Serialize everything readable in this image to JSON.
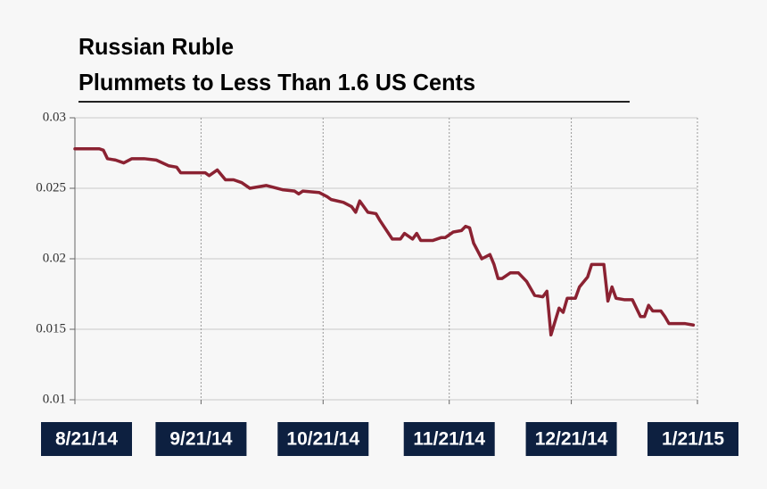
{
  "chart_data": {
    "type": "line",
    "title": [
      "Russian Ruble",
      "Plummets to Less Than 1.6 US Cents"
    ],
    "color": "#8b2232",
    "x": [
      0,
      6,
      7,
      8,
      10,
      12,
      14,
      17,
      20,
      23,
      25,
      26,
      29,
      32,
      33,
      35,
      37,
      39,
      41,
      43,
      47,
      51,
      54,
      55,
      56,
      60,
      62,
      63,
      66,
      68,
      69,
      70,
      72,
      74,
      75,
      78,
      80,
      81,
      83,
      84,
      85,
      88,
      90,
      91,
      93,
      95,
      96,
      97,
      98,
      100,
      102,
      103,
      104,
      105,
      107,
      109,
      111,
      113,
      115,
      116,
      117,
      119,
      120,
      121,
      123,
      124,
      126,
      127,
      130,
      131,
      132,
      133,
      135,
      137,
      139,
      140,
      141,
      142,
      144,
      145,
      146,
      148,
      150,
      152
    ],
    "values": [
      0.0278,
      0.0278,
      0.0277,
      0.0271,
      0.027,
      0.0268,
      0.0271,
      0.0271,
      0.027,
      0.0266,
      0.0265,
      0.0261,
      0.0261,
      0.0261,
      0.0259,
      0.0263,
      0.0256,
      0.0256,
      0.0254,
      0.025,
      0.0252,
      0.0249,
      0.0248,
      0.0246,
      0.0248,
      0.0247,
      0.0244,
      0.0242,
      0.024,
      0.0237,
      0.0233,
      0.0241,
      0.0233,
      0.0232,
      0.0227,
      0.0214,
      0.0214,
      0.0218,
      0.0214,
      0.0218,
      0.0213,
      0.0213,
      0.0215,
      0.0215,
      0.0219,
      0.022,
      0.0223,
      0.0222,
      0.0211,
      0.02,
      0.0203,
      0.0196,
      0.0186,
      0.0186,
      0.019,
      0.019,
      0.0184,
      0.0174,
      0.0173,
      0.0177,
      0.0146,
      0.0165,
      0.0162,
      0.0172,
      0.0172,
      0.018,
      0.0187,
      0.0196,
      0.0196,
      0.017,
      0.018,
      0.0172,
      0.0171,
      0.0171,
      0.0159,
      0.0159,
      0.0167,
      0.0163,
      0.0163,
      0.0159,
      0.0154,
      0.0154,
      0.0154,
      0.0153
    ],
    "xlim": [
      0,
      153
    ],
    "xticks": [
      {
        "value": 0,
        "label": "8/21/14"
      },
      {
        "value": 31,
        "label": "9/21/14"
      },
      {
        "value": 61,
        "label": "10/21/14"
      },
      {
        "value": 92,
        "label": "11/21/14"
      },
      {
        "value": 122,
        "label": "12/21/14"
      },
      {
        "value": 153,
        "label": "1/21/15"
      }
    ],
    "ylim": [
      0.01,
      0.03
    ],
    "yticks": [
      0.01,
      0.015,
      0.02,
      0.025,
      0.03
    ],
    "grid": true
  }
}
